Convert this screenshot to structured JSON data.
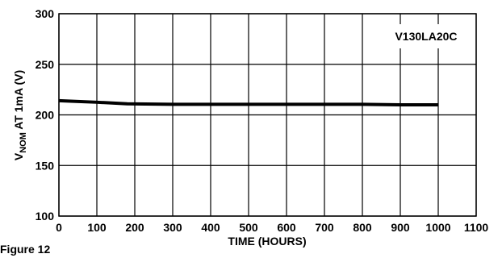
{
  "chart_data": {
    "type": "line",
    "ylabel_parts": [
      "V",
      "NOM",
      " AT 1mA (V)"
    ],
    "xlabel": "TIME (HOURS)",
    "annotation": "V130LA20C",
    "caption": "Figure 12",
    "x": [
      0,
      100,
      180,
      300,
      400,
      500,
      600,
      700,
      800,
      900,
      1000
    ],
    "series": [
      {
        "color": "#000000",
        "values": [
          214,
          212.5,
          211,
          210.5,
          210.5,
          210.5,
          210.5,
          210.5,
          210.5,
          210,
          210
        ]
      }
    ],
    "xlim": [
      0,
      1100
    ],
    "xticks": [
      0,
      100,
      200,
      300,
      400,
      500,
      600,
      700,
      800,
      900,
      1000,
      1100
    ],
    "ylim": [
      100,
      300
    ],
    "yticks": [
      100,
      150,
      200,
      250,
      300
    ],
    "grid": true
  }
}
